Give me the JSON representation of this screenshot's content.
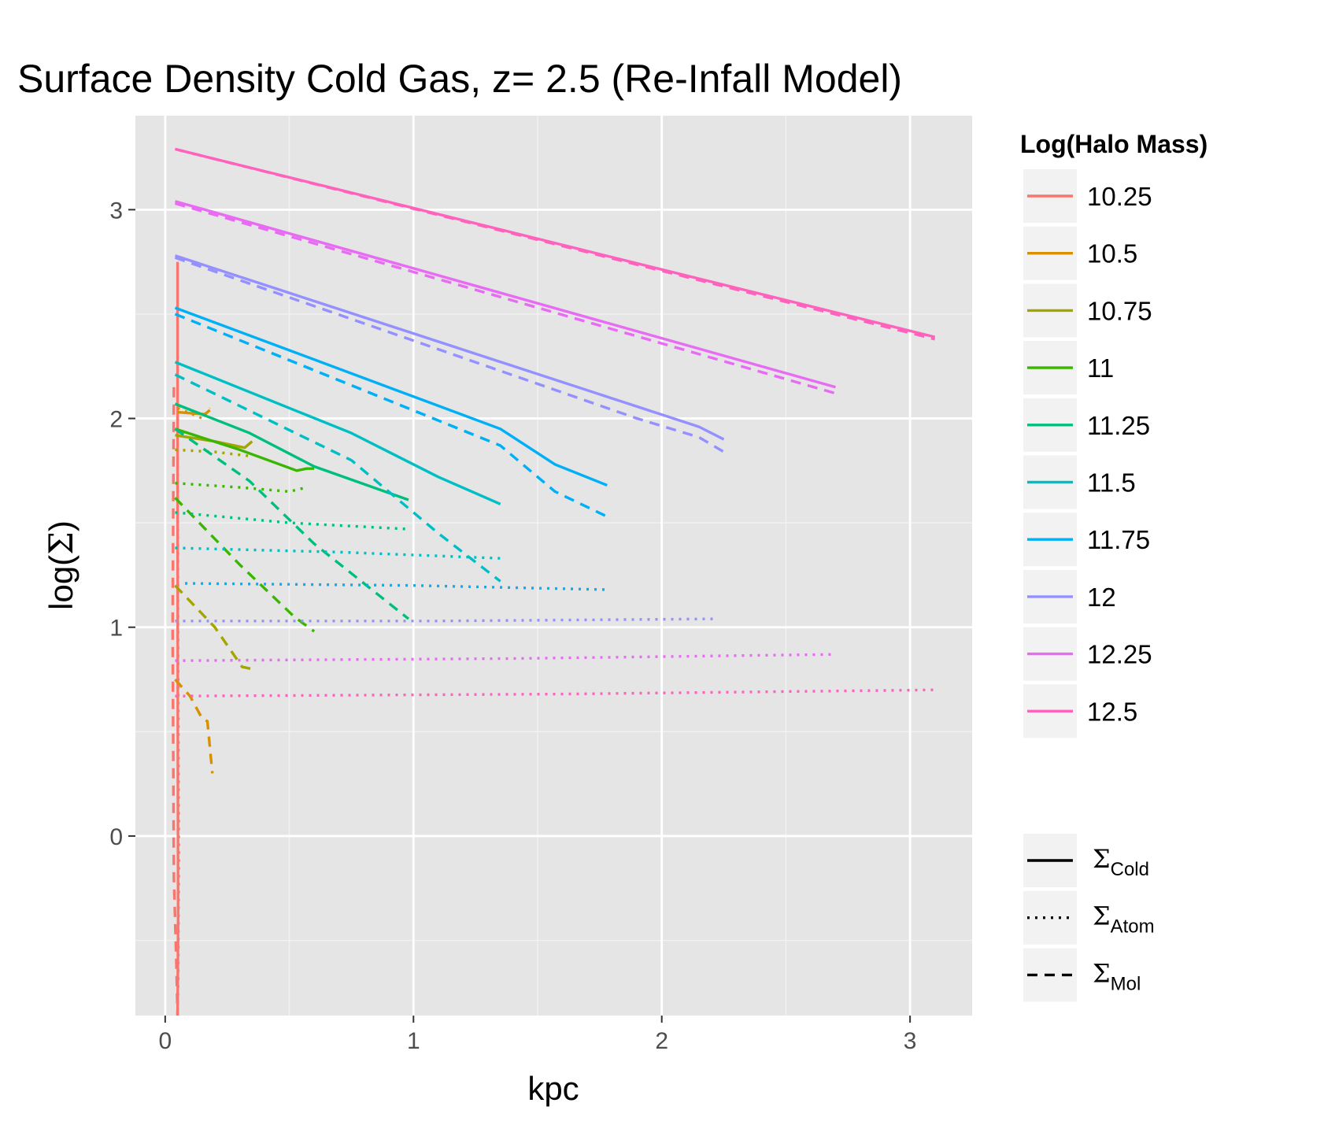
{
  "chart_data": {
    "type": "line",
    "title": "Surface Density Cold Gas, z= 2.5 (Re-Infall Model)",
    "xlabel": "kpc",
    "ylabel_prefix": "log(",
    "ylabel_symbol": "Σ",
    "ylabel_suffix": ")",
    "xlim": [
      -0.12,
      3.25
    ],
    "ylim": [
      -0.86,
      3.45
    ],
    "grid": true,
    "x_ticks": [
      {
        "value": 0,
        "label": "0"
      },
      {
        "value": 1,
        "label": "1"
      },
      {
        "value": 2,
        "label": "2"
      },
      {
        "value": 3,
        "label": "3"
      }
    ],
    "y_ticks": [
      {
        "value": 0,
        "label": "0"
      },
      {
        "value": 1,
        "label": "1"
      },
      {
        "value": 2,
        "label": "2"
      },
      {
        "value": 3,
        "label": "3"
      }
    ],
    "legend_color_title": "Log(Halo Mass)",
    "legend_linetype": [
      {
        "symbol": "Σ",
        "sub": "Cold",
        "dash": "solid"
      },
      {
        "symbol": "Σ",
        "sub": "Atom",
        "dash": "dotted"
      },
      {
        "symbol": "Σ",
        "sub": "Mol",
        "dash": "dashed"
      }
    ],
    "series": [
      {
        "name": "10.25",
        "color": "#F8766D",
        "cold": [
          [
            0.05,
            2.75
          ],
          [
            0.05,
            1.8
          ],
          [
            0.051,
            0.5
          ],
          [
            0.052,
            -0.4
          ],
          [
            0.05,
            -0.86
          ]
        ],
        "atom": [
          [
            0.05,
            2.0
          ],
          [
            0.052,
            0.8
          ],
          [
            0.055,
            -0.1
          ],
          [
            0.052,
            -0.7
          ],
          [
            0.05,
            -0.86
          ]
        ],
        "mol": [
          [
            0.035,
            2.15
          ],
          [
            0.03,
            1.0
          ],
          [
            0.035,
            -0.2
          ],
          [
            0.045,
            -0.6
          ],
          [
            0.05,
            -0.86
          ]
        ]
      },
      {
        "name": "10.5",
        "color": "#D89000",
        "cold": [
          [
            0.05,
            2.03
          ],
          [
            0.16,
            2.02
          ],
          [
            0.18,
            2.04
          ]
        ],
        "atom": [
          [
            0.05,
            2.05
          ],
          [
            0.15,
            2.0
          ],
          [
            0.18,
            2.05
          ]
        ],
        "mol": [
          [
            0.04,
            0.75
          ],
          [
            0.1,
            0.67
          ],
          [
            0.15,
            0.56
          ],
          [
            0.17,
            0.55
          ],
          [
            0.19,
            0.3
          ]
        ]
      },
      {
        "name": "10.75",
        "color": "#A3A500",
        "cold": [
          [
            0.04,
            1.92
          ],
          [
            0.2,
            1.89
          ],
          [
            0.32,
            1.86
          ],
          [
            0.35,
            1.89
          ]
        ],
        "atom": [
          [
            0.04,
            1.85
          ],
          [
            0.2,
            1.84
          ],
          [
            0.34,
            1.82
          ]
        ],
        "mol": [
          [
            0.04,
            1.2
          ],
          [
            0.2,
            1.0
          ],
          [
            0.31,
            0.81
          ],
          [
            0.35,
            0.8
          ]
        ]
      },
      {
        "name": "11",
        "color": "#39B600",
        "cold": [
          [
            0.04,
            1.95
          ],
          [
            0.3,
            1.85
          ],
          [
            0.53,
            1.75
          ],
          [
            0.57,
            1.76
          ],
          [
            0.6,
            1.76
          ]
        ],
        "atom": [
          [
            0.04,
            1.69
          ],
          [
            0.3,
            1.67
          ],
          [
            0.5,
            1.65
          ],
          [
            0.57,
            1.67
          ]
        ],
        "mol": [
          [
            0.04,
            1.62
          ],
          [
            0.3,
            1.3
          ],
          [
            0.52,
            1.05
          ],
          [
            0.6,
            0.98
          ]
        ]
      },
      {
        "name": "11.25",
        "color": "#00BF7D",
        "cold": [
          [
            0.04,
            2.07
          ],
          [
            0.34,
            1.93
          ],
          [
            0.6,
            1.77
          ],
          [
            0.98,
            1.61
          ]
        ],
        "atom": [
          [
            0.04,
            1.55
          ],
          [
            0.5,
            1.5
          ],
          [
            0.98,
            1.47
          ]
        ],
        "mol": [
          [
            0.04,
            1.95
          ],
          [
            0.34,
            1.7
          ],
          [
            0.6,
            1.4
          ],
          [
            0.98,
            1.04
          ]
        ]
      },
      {
        "name": "11.5",
        "color": "#00BFC4",
        "cold": [
          [
            0.04,
            2.27
          ],
          [
            0.75,
            1.93
          ],
          [
            1.1,
            1.72
          ],
          [
            1.35,
            1.59
          ]
        ],
        "atom": [
          [
            0.04,
            1.38
          ],
          [
            0.7,
            1.36
          ],
          [
            1.35,
            1.33
          ]
        ],
        "mol": [
          [
            0.04,
            2.21
          ],
          [
            0.75,
            1.8
          ],
          [
            1.1,
            1.45
          ],
          [
            1.35,
            1.22
          ]
        ]
      },
      {
        "name": "11.75",
        "color": "#00B0F6",
        "cold": [
          [
            0.04,
            2.53
          ],
          [
            1.35,
            1.95
          ],
          [
            1.57,
            1.78
          ],
          [
            1.78,
            1.68
          ]
        ],
        "atom": [
          [
            0.08,
            1.21
          ],
          [
            1.0,
            1.2
          ],
          [
            1.78,
            1.18
          ]
        ],
        "mol": [
          [
            0.04,
            2.5
          ],
          [
            1.35,
            1.87
          ],
          [
            1.57,
            1.65
          ],
          [
            1.78,
            1.53
          ]
        ]
      },
      {
        "name": "12",
        "color": "#9590FF",
        "cold": [
          [
            0.04,
            2.78
          ],
          [
            2.15,
            1.96
          ],
          [
            2.25,
            1.9
          ]
        ],
        "atom": [
          [
            0.04,
            1.03
          ],
          [
            1.1,
            1.03
          ],
          [
            2.22,
            1.04
          ]
        ],
        "mol": [
          [
            0.04,
            2.77
          ],
          [
            1.9,
            2.0
          ],
          [
            2.15,
            1.91
          ],
          [
            2.25,
            1.84
          ]
        ]
      },
      {
        "name": "12.25",
        "color": "#E76BF3",
        "cold": [
          [
            0.04,
            3.04
          ],
          [
            2.7,
            2.15
          ]
        ],
        "atom": [
          [
            0.04,
            0.84
          ],
          [
            1.4,
            0.85
          ],
          [
            2.7,
            0.87
          ]
        ],
        "mol": [
          [
            0.04,
            3.03
          ],
          [
            2.7,
            2.12
          ]
        ]
      },
      {
        "name": "12.5",
        "color": "#FF62BC",
        "cold": [
          [
            0.04,
            3.29
          ],
          [
            3.1,
            2.39
          ]
        ],
        "atom": [
          [
            0.04,
            0.67
          ],
          [
            1.6,
            0.68
          ],
          [
            3.1,
            0.7
          ]
        ],
        "mol": [
          [
            0.04,
            3.29
          ],
          [
            3.1,
            2.38
          ]
        ]
      }
    ]
  }
}
